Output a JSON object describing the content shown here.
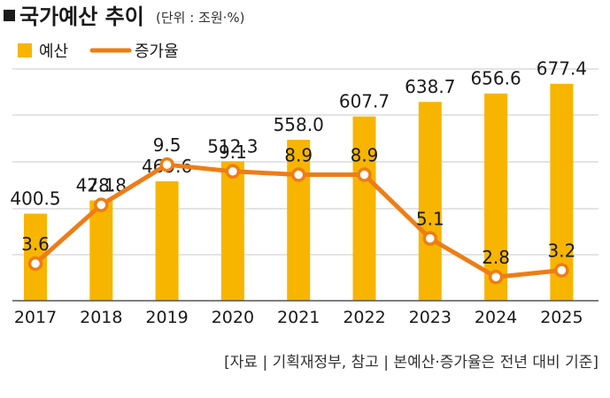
{
  "header": {
    "title": "국가예산 추이",
    "unit": "(단위 : 조원·%)"
  },
  "legend": {
    "bar_label": "예산",
    "line_label": "증가율"
  },
  "source": "[자료 | 기획재정부, 참고 | 본예산·증가율은 전년 대비 기준]",
  "colors": {
    "bar": "#F7B500",
    "line": "#EE7D16",
    "grid": "#c8c8c8",
    "axis": "#555555"
  },
  "chart_data": {
    "type": "bar",
    "title": "국가예산 추이",
    "unit": "(단위 : 조원·%)",
    "categories": [
      "2017",
      "2018",
      "2019",
      "2020",
      "2021",
      "2022",
      "2023",
      "2024",
      "2025"
    ],
    "series": [
      {
        "name": "예산",
        "type": "bar",
        "values": [
          400.5,
          428.8,
          469.6,
          512.3,
          558.0,
          607.7,
          638.7,
          656.6,
          677.4
        ]
      },
      {
        "name": "증가율",
        "type": "line",
        "values": [
          3.6,
          7.1,
          9.5,
          9.1,
          8.9,
          8.9,
          5.1,
          2.8,
          3.2
        ]
      }
    ],
    "value_labels": {
      "bars": [
        "400.5",
        "428.8",
        "469.6",
        "512.3",
        "558.0",
        "607.7",
        "638.7",
        "656.6",
        "677.4"
      ],
      "line": [
        "3.6",
        "7.1",
        "9.5",
        "9.1",
        "8.9",
        "8.9",
        "5.1",
        "2.8",
        "3.2"
      ]
    },
    "legend_position": "top-left",
    "grid": true
  }
}
